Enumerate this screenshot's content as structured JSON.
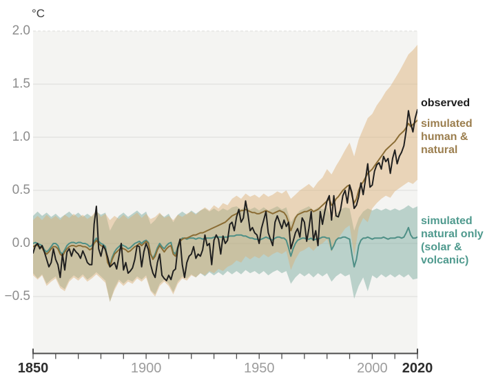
{
  "figure": {
    "plot_background": "#f4f4f2",
    "grid_color": "#dcdcda",
    "axis_color": "#4c4c4c",
    "y_label_color": "#8c8c8c",
    "x_label_color": "#9c9c9c",
    "x_label_bold_color": "#2d2d2d"
  },
  "axes": {
    "y": {
      "unit": "°C",
      "ticks": [
        {
          "label": "2.0",
          "value": 2.0,
          "dashed": true
        },
        {
          "label": "1.5",
          "value": 1.5,
          "dashed": false
        },
        {
          "label": "1.0",
          "value": 1.0,
          "dashed": false
        },
        {
          "label": "0.5",
          "value": 0.5,
          "dashed": false
        },
        {
          "label": "0.0",
          "value": 0.0,
          "dashed": false
        },
        {
          "label": "−0.5",
          "value": -0.5,
          "dashed": false
        }
      ]
    },
    "x": {
      "range": [
        1850,
        2020
      ],
      "minor_tick_step": 10,
      "ticks": [
        {
          "label": "1850",
          "value": 1850,
          "bold": true
        },
        {
          "label": "1900",
          "value": 1900,
          "bold": false
        },
        {
          "label": "1950",
          "value": 1950,
          "bold": false
        },
        {
          "label": "2000",
          "value": 2000,
          "bold": false
        },
        {
          "label": "2020",
          "value": 2020,
          "bold": true
        }
      ]
    }
  },
  "legend": {
    "items": [
      {
        "id": "observed",
        "text": "observed",
        "color": "#1c1c1c"
      },
      {
        "id": "human_natural",
        "text": "simulated\nhuman &\nnatural",
        "color": "#9b7e4e"
      },
      {
        "id": "natural_only",
        "text": "simulated\nnatural only\n(solar &\nvolcanic)",
        "color": "#4f9a8e"
      }
    ]
  },
  "chart_data": {
    "type": "line",
    "ylabel": "°C",
    "x_range": [
      1850,
      2020
    ],
    "y_tick_values": [
      2.0,
      1.5,
      1.0,
      0.5,
      0.0,
      -0.5
    ],
    "grid": true,
    "legend_position": "right",
    "series": [
      {
        "id": "observed",
        "name": "observed",
        "color": "#1f1f1f",
        "x_start": 1850,
        "x_step": 1,
        "values": [
          -0.09,
          -0.02,
          0.0,
          -0.05,
          -0.02,
          -0.08,
          -0.15,
          -0.22,
          -0.18,
          -0.05,
          -0.15,
          -0.2,
          -0.32,
          -0.1,
          -0.25,
          -0.08,
          -0.05,
          -0.12,
          -0.05,
          -0.08,
          -0.1,
          -0.14,
          -0.07,
          -0.12,
          -0.18,
          -0.2,
          -0.2,
          0.18,
          0.35,
          -0.05,
          -0.12,
          -0.02,
          -0.06,
          -0.13,
          -0.22,
          -0.2,
          -0.18,
          -0.24,
          -0.12,
          0.0,
          -0.25,
          -0.18,
          -0.28,
          -0.26,
          -0.23,
          -0.15,
          -0.02,
          -0.03,
          -0.22,
          -0.08,
          0.0,
          -0.06,
          -0.2,
          -0.28,
          -0.32,
          -0.18,
          -0.1,
          -0.3,
          -0.33,
          -0.35,
          -0.3,
          -0.34,
          -0.26,
          -0.24,
          -0.04,
          0.04,
          -0.2,
          -0.32,
          -0.18,
          -0.12,
          -0.1,
          -0.03,
          -0.14,
          -0.1,
          -0.12,
          -0.06,
          0.08,
          -0.02,
          0.0,
          -0.2,
          0.03,
          0.08,
          0.04,
          -0.1,
          0.07,
          0.0,
          0.03,
          0.18,
          0.2,
          0.12,
          0.25,
          0.32,
          0.2,
          0.24,
          0.4,
          0.28,
          0.12,
          0.15,
          0.1,
          0.08,
          0.0,
          0.14,
          0.22,
          0.3,
          0.1,
          0.04,
          -0.02,
          0.2,
          0.26,
          0.2,
          0.14,
          0.22,
          0.16,
          0.2,
          -0.05,
          0.02,
          0.1,
          0.14,
          0.06,
          0.24,
          0.2,
          0.02,
          0.14,
          0.3,
          0.03,
          0.12,
          -0.02,
          0.3,
          0.18,
          0.3,
          0.4,
          0.45,
          0.22,
          0.45,
          0.26,
          0.25,
          0.32,
          0.45,
          0.5,
          0.38,
          0.55,
          0.48,
          0.33,
          0.36,
          0.44,
          0.57,
          0.46,
          0.6,
          0.75,
          0.53,
          0.55,
          0.68,
          0.74,
          0.76,
          0.7,
          0.82,
          0.77,
          0.8,
          0.66,
          0.8,
          0.88,
          0.75,
          0.82,
          0.86,
          0.92,
          1.06,
          1.25,
          1.13,
          1.05,
          1.18,
          1.26
        ]
      },
      {
        "id": "human_natural",
        "name": "simulated human & natural",
        "color": "#8a6c34",
        "x_start": 1850,
        "x_step": 1,
        "values": [
          -0.03,
          -0.02,
          -0.02,
          -0.03,
          -0.04,
          -0.08,
          -0.1,
          -0.08,
          -0.05,
          -0.03,
          -0.03,
          -0.05,
          -0.1,
          -0.12,
          -0.08,
          -0.05,
          -0.03,
          -0.02,
          -0.02,
          -0.03,
          -0.02,
          -0.02,
          -0.03,
          -0.03,
          -0.04,
          -0.06,
          -0.05,
          0.0,
          0.03,
          0.0,
          -0.02,
          -0.03,
          -0.05,
          -0.18,
          -0.22,
          -0.15,
          -0.1,
          -0.08,
          -0.06,
          -0.04,
          -0.05,
          -0.06,
          -0.08,
          -0.07,
          -0.05,
          -0.03,
          -0.02,
          0.0,
          -0.02,
          0.0,
          0.02,
          0.0,
          -0.1,
          -0.15,
          -0.12,
          -0.06,
          -0.02,
          -0.05,
          -0.08,
          -0.05,
          -0.03,
          -0.02,
          -0.1,
          -0.12,
          -0.05,
          0.02,
          0.04,
          0.05,
          0.05,
          0.06,
          0.07,
          0.08,
          0.08,
          0.09,
          0.1,
          0.1,
          0.11,
          0.12,
          0.13,
          0.14,
          0.15,
          0.16,
          0.17,
          0.18,
          0.19,
          0.2,
          0.22,
          0.24,
          0.26,
          0.27,
          0.28,
          0.3,
          0.31,
          0.31,
          0.32,
          0.31,
          0.3,
          0.29,
          0.29,
          0.28,
          0.28,
          0.29,
          0.3,
          0.31,
          0.3,
          0.29,
          0.28,
          0.29,
          0.3,
          0.31,
          0.3,
          0.29,
          0.26,
          0.2,
          0.12,
          0.18,
          0.24,
          0.27,
          0.28,
          0.29,
          0.3,
          0.3,
          0.31,
          0.32,
          0.3,
          0.31,
          0.32,
          0.34,
          0.36,
          0.38,
          0.4,
          0.42,
          0.36,
          0.38,
          0.42,
          0.44,
          0.47,
          0.5,
          0.52,
          0.54,
          0.55,
          0.45,
          0.38,
          0.42,
          0.5,
          0.55,
          0.58,
          0.62,
          0.66,
          0.68,
          0.7,
          0.73,
          0.76,
          0.79,
          0.82,
          0.85,
          0.88,
          0.9,
          0.92,
          0.94,
          0.96,
          0.99,
          1.02,
          1.04,
          1.06,
          1.09,
          1.13,
          1.1,
          1.12,
          1.14,
          1.16
        ]
      },
      {
        "id": "natural_only",
        "name": "simulated natural only (solar & volcanic)",
        "color": "#4e8f86",
        "x_start": 1850,
        "x_step": 1,
        "values": [
          0.0,
          0.01,
          0.0,
          -0.01,
          -0.02,
          -0.06,
          -0.08,
          -0.06,
          -0.03,
          0.0,
          0.0,
          -0.02,
          -0.08,
          -0.1,
          -0.06,
          -0.02,
          0.0,
          0.01,
          0.01,
          0.0,
          0.01,
          0.01,
          0.0,
          0.0,
          -0.01,
          -0.03,
          -0.02,
          0.02,
          0.05,
          0.02,
          0.0,
          -0.01,
          -0.03,
          -0.16,
          -0.2,
          -0.13,
          -0.08,
          -0.05,
          -0.03,
          -0.01,
          -0.02,
          -0.03,
          -0.05,
          -0.04,
          -0.02,
          0.0,
          0.01,
          0.02,
          0.0,
          0.02,
          0.03,
          0.01,
          -0.1,
          -0.14,
          -0.1,
          -0.04,
          0.0,
          -0.03,
          -0.05,
          -0.02,
          0.0,
          0.01,
          -0.08,
          -0.1,
          -0.03,
          0.03,
          0.05,
          0.05,
          0.04,
          0.05,
          0.05,
          0.05,
          0.04,
          0.05,
          0.05,
          0.04,
          0.05,
          0.05,
          0.05,
          0.05,
          0.06,
          0.06,
          0.06,
          0.06,
          0.06,
          0.06,
          0.06,
          0.07,
          0.07,
          0.07,
          0.08,
          0.08,
          0.08,
          0.07,
          0.07,
          0.06,
          0.05,
          0.05,
          0.04,
          0.04,
          0.03,
          0.04,
          0.05,
          0.06,
          0.05,
          0.04,
          0.03,
          0.05,
          0.06,
          0.06,
          0.05,
          0.05,
          0.03,
          -0.04,
          -0.12,
          -0.05,
          0.0,
          0.03,
          0.04,
          0.05,
          0.05,
          0.04,
          0.04,
          0.05,
          0.03,
          0.04,
          0.04,
          0.05,
          0.06,
          0.06,
          0.05,
          0.05,
          -0.06,
          -0.02,
          0.03,
          0.05,
          0.05,
          0.06,
          0.06,
          0.05,
          0.04,
          -0.1,
          -0.22,
          -0.15,
          -0.02,
          0.03,
          0.05,
          0.05,
          0.06,
          0.05,
          0.04,
          0.05,
          0.05,
          0.05,
          0.05,
          0.06,
          0.05,
          0.04,
          0.05,
          0.05,
          0.05,
          0.06,
          0.06,
          0.05,
          0.06,
          0.1,
          0.15,
          0.08,
          0.05,
          0.05,
          0.06
        ]
      }
    ],
    "bands": [
      {
        "id": "human_natural_range",
        "name": "simulated human & natural 5-95% range",
        "fill": "rgba(220,174,114,0.45)",
        "x_start": 1850,
        "x_step": 2,
        "upper": [
          0.22,
          0.26,
          0.22,
          0.27,
          0.23,
          0.26,
          0.22,
          0.27,
          0.24,
          0.28,
          0.24,
          0.27,
          0.23,
          0.26,
          0.31,
          0.25,
          0.28,
          0.22,
          0.26,
          0.23,
          0.27,
          0.23,
          0.26,
          0.29,
          0.24,
          0.28,
          0.23,
          0.25,
          0.29,
          0.24,
          0.26,
          0.22,
          0.27,
          0.25,
          0.28,
          0.3,
          0.27,
          0.31,
          0.34,
          0.31,
          0.36,
          0.33,
          0.38,
          0.36,
          0.42,
          0.45,
          0.42,
          0.47,
          0.44,
          0.46,
          0.43,
          0.47,
          0.44,
          0.46,
          0.49,
          0.47,
          0.5,
          0.42,
          0.46,
          0.5,
          0.53,
          0.56,
          0.52,
          0.58,
          0.62,
          0.7,
          0.65,
          0.73,
          0.8,
          0.88,
          0.95,
          0.82,
          0.98,
          1.08,
          1.18,
          1.22,
          1.3,
          1.36,
          1.43,
          1.48,
          1.55,
          1.62,
          1.7,
          1.78,
          1.82,
          1.87
        ],
        "lower": [
          -0.3,
          -0.34,
          -0.3,
          -0.4,
          -0.36,
          -0.33,
          -0.42,
          -0.45,
          -0.36,
          -0.32,
          -0.35,
          -0.31,
          -0.36,
          -0.33,
          -0.29,
          -0.33,
          -0.37,
          -0.55,
          -0.44,
          -0.36,
          -0.4,
          -0.36,
          -0.38,
          -0.33,
          -0.36,
          -0.32,
          -0.45,
          -0.5,
          -0.4,
          -0.36,
          -0.4,
          -0.48,
          -0.38,
          -0.33,
          -0.35,
          -0.3,
          -0.32,
          -0.28,
          -0.3,
          -0.26,
          -0.28,
          -0.24,
          -0.26,
          -0.22,
          -0.2,
          -0.16,
          -0.18,
          -0.12,
          -0.15,
          -0.12,
          -0.14,
          -0.1,
          -0.13,
          -0.1,
          -0.08,
          -0.1,
          -0.07,
          -0.25,
          -0.15,
          -0.08,
          -0.06,
          -0.03,
          -0.07,
          -0.02,
          0.0,
          0.04,
          -0.08,
          0.02,
          0.08,
          0.14,
          0.17,
          -0.12,
          0.15,
          0.24,
          0.2,
          0.33,
          0.38,
          0.42,
          0.45,
          0.43,
          0.49,
          0.52,
          0.55,
          0.58,
          0.56,
          0.6
        ]
      },
      {
        "id": "natural_only_range",
        "name": "simulated natural only 5-95% range",
        "fill": "rgba(105,160,147,0.42)",
        "x_start": 1850,
        "x_step": 2,
        "upper": [
          0.26,
          0.3,
          0.26,
          0.29,
          0.25,
          0.28,
          0.24,
          0.27,
          0.3,
          0.26,
          0.29,
          0.25,
          0.28,
          0.25,
          0.3,
          0.27,
          0.29,
          0.12,
          0.2,
          0.26,
          0.29,
          0.25,
          0.28,
          0.31,
          0.27,
          0.3,
          0.18,
          0.22,
          0.28,
          0.25,
          0.28,
          0.2,
          0.27,
          0.3,
          0.27,
          0.31,
          0.28,
          0.31,
          0.33,
          0.3,
          0.33,
          0.3,
          0.33,
          0.31,
          0.34,
          0.35,
          0.32,
          0.35,
          0.32,
          0.34,
          0.31,
          0.34,
          0.31,
          0.33,
          0.35,
          0.32,
          0.34,
          0.2,
          0.26,
          0.31,
          0.33,
          0.35,
          0.31,
          0.34,
          0.32,
          0.34,
          0.22,
          0.28,
          0.32,
          0.34,
          0.33,
          0.12,
          0.24,
          0.3,
          0.33,
          0.31,
          0.33,
          0.31,
          0.33,
          0.31,
          0.33,
          0.31,
          0.33,
          0.36,
          0.33,
          0.35
        ],
        "lower": [
          -0.28,
          -0.33,
          -0.29,
          -0.38,
          -0.34,
          -0.31,
          -0.4,
          -0.43,
          -0.34,
          -0.3,
          -0.33,
          -0.29,
          -0.34,
          -0.31,
          -0.27,
          -0.31,
          -0.35,
          -0.55,
          -0.42,
          -0.34,
          -0.38,
          -0.34,
          -0.36,
          -0.31,
          -0.34,
          -0.3,
          -0.44,
          -0.48,
          -0.38,
          -0.34,
          -0.38,
          -0.46,
          -0.36,
          -0.31,
          -0.33,
          -0.29,
          -0.32,
          -0.28,
          -0.31,
          -0.27,
          -0.3,
          -0.27,
          -0.3,
          -0.26,
          -0.29,
          -0.26,
          -0.29,
          -0.25,
          -0.28,
          -0.26,
          -0.29,
          -0.26,
          -0.3,
          -0.27,
          -0.25,
          -0.28,
          -0.26,
          -0.38,
          -0.32,
          -0.28,
          -0.31,
          -0.28,
          -0.32,
          -0.28,
          -0.31,
          -0.28,
          -0.36,
          -0.31,
          -0.28,
          -0.31,
          -0.29,
          -0.52,
          -0.4,
          -0.32,
          -0.45,
          -0.3,
          -0.33,
          -0.29,
          -0.32,
          -0.29,
          -0.32,
          -0.29,
          -0.32,
          -0.29,
          -0.34,
          -0.33
        ]
      }
    ]
  }
}
